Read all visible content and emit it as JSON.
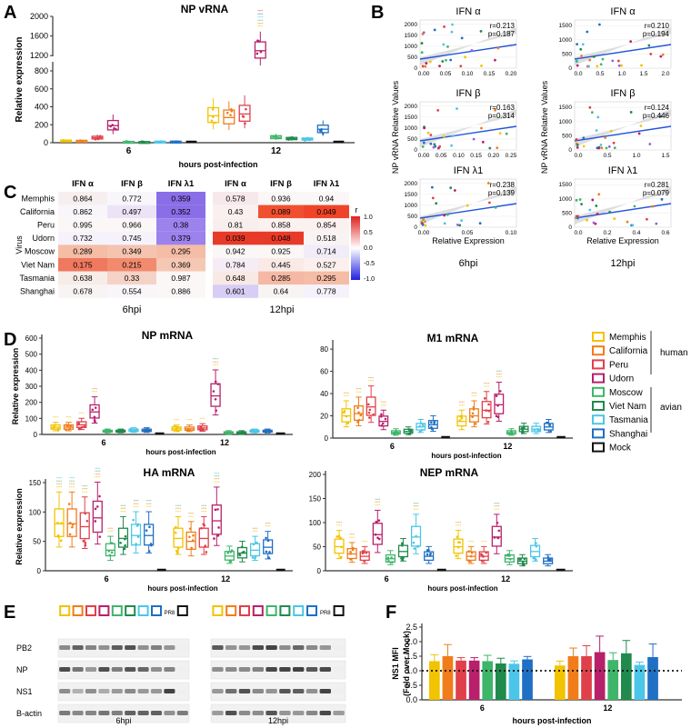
{
  "colors": {
    "Memphis": "#f2c300",
    "California": "#f07d1a",
    "Peru": "#e0404a",
    "Udorn": "#b8206a",
    "Moscow": "#3fb56a",
    "Viet Nam": "#1f8a4c",
    "Tasmania": "#4bc6e8",
    "Shanghai": "#1f6fc4",
    "Mock": "#111111"
  },
  "panels": {
    "A": "A",
    "B": "B",
    "C": "C",
    "D": "D",
    "E": "E",
    "F": "F"
  },
  "chart_data": [
    {
      "id": "A",
      "type": "box",
      "title": "NP vRNA",
      "ylabel": "Relative expression",
      "xlabel": "hours post-infection",
      "yticks_low": [
        "0",
        "200",
        "400",
        "600",
        "800"
      ],
      "yticks_high": [
        "1200",
        "1600",
        "2000"
      ],
      "groups": [
        {
          "label": "6",
          "medians": [
            22,
            20,
            55,
            190,
            10,
            8,
            12,
            12,
            0
          ]
        },
        {
          "label": "12",
          "medians": [
            300,
            280,
            320,
            1300,
            60,
            45,
            40,
            150,
            0
          ]
        }
      ]
    },
    {
      "id": "B",
      "type": "scatter",
      "ylabel": "NP vRNA Relative Values",
      "xlabel": "Relative Expression",
      "columns": [
        "6hpi",
        "12hpi"
      ],
      "plots": [
        {
          "title": "IFN α",
          "r": "r=0.213",
          "p": "p=0.187",
          "xticks": [
            "0.00",
            "0.05",
            "0.10",
            "0.15",
            "0.20"
          ],
          "yticks": [
            "0",
            "500",
            "1000",
            "1500",
            "2000"
          ]
        },
        {
          "title": "IFN α",
          "r": "r=0.210",
          "p": "p=0.194",
          "xticks": [
            "0.0",
            "0.5",
            "1.0",
            "1.5",
            "2.0"
          ],
          "yticks": [
            "0",
            "500",
            "1000",
            "1500"
          ]
        },
        {
          "title": "IFN β",
          "r": "r=0.163",
          "p": "p=0.314",
          "xticks": [
            "0.00",
            "0.05",
            "0.10",
            "0.15",
            "0.20",
            "0.25"
          ],
          "yticks": [
            "0",
            "500",
            "1000",
            "1500",
            "2000"
          ]
        },
        {
          "title": "IFN β",
          "r": "r=0.124",
          "p": "p=0.446",
          "xticks": [
            "0.0",
            "0.5",
            "1.0",
            "1.5"
          ],
          "yticks": [
            "0",
            "500",
            "1000",
            "1500"
          ]
        },
        {
          "title": "IFN λ1",
          "r": "r=0.238",
          "p": "p=0.139",
          "xticks": [
            "0.00",
            "0.05",
            "0.10"
          ],
          "yticks": [
            "0",
            "500",
            "1000",
            "1500",
            "2000"
          ]
        },
        {
          "title": "IFN λ1",
          "r": "r=0.281",
          "p": "p=0.079",
          "xticks": [
            "0.0",
            "0.2",
            "0.4",
            "0.6"
          ],
          "yticks": [
            "0",
            "500",
            "1000",
            "1500"
          ]
        }
      ]
    },
    {
      "id": "C",
      "type": "heatmap",
      "ylabel": "Virus",
      "colorbar_title": "r",
      "colorbar_ticks": [
        "1.0",
        "0.5",
        "0.0",
        "-0.5",
        "-1.0"
      ],
      "col_labels": [
        "IFN α",
        "IFN β",
        "IFN λ1",
        "IFN α",
        "IFN β",
        "IFN λ1"
      ],
      "group_labels": [
        "6hpi",
        "12hpi"
      ],
      "rows": [
        "Memphis",
        "California",
        "Peru",
        "Udorn",
        "Moscow",
        "Viet Nam",
        "Tasmania",
        "Shanghai"
      ],
      "values": [
        [
          0.864,
          0.772,
          0.359,
          0.578,
          0.936,
          0.94
        ],
        [
          0.862,
          0.497,
          0.352,
          0.43,
          0.089,
          0.049
        ],
        [
          0.995,
          0.966,
          0.38,
          0.81,
          0.858,
          0.854
        ],
        [
          0.732,
          0.745,
          0.379,
          0.039,
          0.048,
          0.518
        ],
        [
          0.289,
          0.349,
          0.295,
          0.942,
          0.925,
          0.714
        ],
        [
          0.175,
          0.215,
          0.369,
          0.784,
          0.445,
          0.527
        ],
        [
          0.638,
          0.33,
          0.987,
          0.648,
          0.285,
          0.295
        ],
        [
          0.678,
          0.554,
          0.886,
          0.601,
          0.64,
          0.778
        ]
      ],
      "cell_colors": [
        [
          "#f7efef",
          "#f8f6fb",
          "#8a6ee8",
          "#f7e8ec",
          "#fbf7f7",
          "#fbf7f7"
        ],
        [
          "#f8f6fb",
          "#ece4f6",
          "#8a6ee8",
          "#fbf0f0",
          "#f05030",
          "#f04428"
        ],
        [
          "#fbf7f7",
          "#fbf7f7",
          "#9b82ec",
          "#f9eeee",
          "#fbf1f1",
          "#fbf1f1"
        ],
        [
          "#f6f2fb",
          "#f6f2fb",
          "#9b82ec",
          "#e83a28",
          "#e83a28",
          "#faf3f3"
        ],
        [
          "#f5bca6",
          "#f4c4b0",
          "#f5bca6",
          "#fbf7f7",
          "#fbf7f7",
          "#f1ecf8"
        ],
        [
          "#f0785e",
          "#f28a6e",
          "#f5c8b4",
          "#f6ecf6",
          "#faeae6",
          "#fbf0ee"
        ],
        [
          "#f7ece6",
          "#f5d2c6",
          "#fbf7f7",
          "#f8e9e4",
          "#f5b8a4",
          "#f5bca6"
        ],
        [
          "#f8f4f4",
          "#f8f6f8",
          "#fbf7f7",
          "#d8cdf4",
          "#f8f4f4",
          "#f6f2fb"
        ]
      ]
    },
    {
      "id": "D",
      "type": "box",
      "legend_title_human": "human",
      "legend_title_avian": "avian",
      "legend": [
        "Memphis",
        "California",
        "Peru",
        "Udorn",
        "Moscow",
        "Viet Nam",
        "Tasmania",
        "Shanghai",
        "Mock"
      ],
      "xlabel": "hours post-infection",
      "ylabel": "Relative expression",
      "plots": [
        {
          "title": "NP mRNA",
          "yticks": [
            "0",
            "100",
            "200",
            "300",
            "400",
            "500",
            "600"
          ],
          "ymax": 600,
          "groups": [
            {
              "label": "6",
              "medians": [
                45,
                45,
                60,
                140,
                20,
                20,
                25,
                25,
                0
              ]
            },
            {
              "label": "12",
              "medians": [
                35,
                35,
                40,
                240,
                10,
                10,
                20,
                20,
                0
              ]
            }
          ]
        },
        {
          "title": "M1 mRNA",
          "yticks": [
            "0",
            "20",
            "40",
            "60",
            "80"
          ],
          "ymax": 85,
          "groups": [
            {
              "label": "6",
              "medians": [
                20,
                22,
                28,
                15,
                5,
                6,
                10,
                12,
                0
              ]
            },
            {
              "label": "12",
              "medians": [
                15,
                20,
                25,
                30,
                5,
                8,
                8,
                10,
                0
              ]
            }
          ]
        },
        {
          "title": "HA mRNA",
          "yticks": [
            "0",
            "50",
            "100",
            "150"
          ],
          "ymax": 150,
          "groups": [
            {
              "label": "6",
              "medians": [
                80,
                80,
                75,
                90,
                35,
                55,
                60,
                60,
                0
              ]
            },
            {
              "label": "12",
              "medians": [
                55,
                50,
                55,
                85,
                25,
                30,
                35,
                40,
                0
              ]
            }
          ]
        },
        {
          "title": "NEP mRNA",
          "yticks": [
            "0",
            "50",
            "100",
            "150",
            "200"
          ],
          "ymax": 200,
          "groups": [
            {
              "label": "6",
              "medians": [
                50,
                35,
                30,
                75,
                25,
                40,
                70,
                30,
                0
              ]
            },
            {
              "label": "12",
              "medians": [
                50,
                30,
                30,
                70,
                25,
                20,
                40,
                20,
                0
              ]
            }
          ]
        }
      ]
    },
    {
      "id": "E",
      "type": "blot",
      "rows": [
        "PB2",
        "NP",
        "NS1",
        "B-actin"
      ],
      "lane_label": "PR8",
      "group_labels": [
        "6hpi",
        "12hpi"
      ]
    },
    {
      "id": "F",
      "type": "bar",
      "ylabel": "NS1 MFI (Fold over Mock)",
      "xlabel": "hours post-infection",
      "yticks": [
        "0.0",
        "0.5",
        "1.0",
        "1.5",
        "2.0",
        "2.5"
      ],
      "ylim": [
        0,
        2.5
      ],
      "reference": 1.0,
      "groups": [
        {
          "label": "6",
          "values": [
            1.33,
            1.5,
            1.35,
            1.35,
            1.33,
            1.25,
            1.24,
            1.39
          ],
          "errors": [
            0.22,
            0.4,
            0.1,
            0.1,
            0.2,
            0.18,
            0.1,
            0.1
          ]
        },
        {
          "label": "12",
          "values": [
            1.18,
            1.5,
            1.5,
            1.64,
            1.37,
            1.6,
            1.2,
            1.47
          ],
          "errors": [
            0.15,
            0.28,
            0.36,
            0.55,
            0.25,
            0.44,
            0.1,
            0.45
          ]
        }
      ]
    }
  ]
}
